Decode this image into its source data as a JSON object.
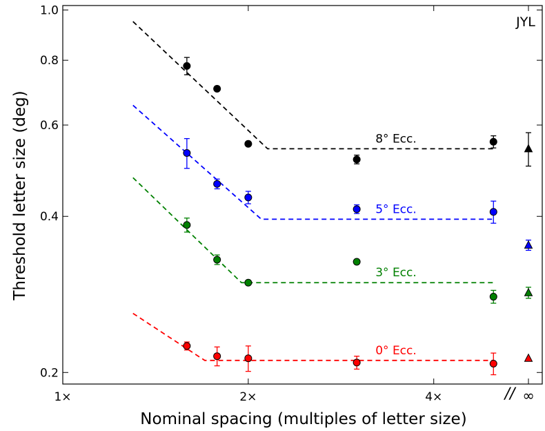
{
  "chart_data": {
    "type": "scatter",
    "subject_label": "JYL",
    "xlabel": "Nominal spacing (multiples of letter size)",
    "ylabel": "Threshold letter size (deg)",
    "xscale": "log",
    "yscale": "log",
    "xlim": [
      1.0,
      6.0
    ],
    "ylim": [
      0.19,
      1.02
    ],
    "x_ticks": [
      {
        "value": 1,
        "label": "1×"
      },
      {
        "value": 2,
        "label": "2×"
      },
      {
        "value": 4,
        "label": "4×"
      },
      {
        "value": "inf",
        "label": "∞"
      }
    ],
    "y_ticks": [
      {
        "value": 0.2,
        "label": "0.2"
      },
      {
        "value": 0.4,
        "label": "0.4"
      },
      {
        "value": 0.6,
        "label": "0.6"
      },
      {
        "value": 0.8,
        "label": "0.8"
      },
      {
        "value": 1.0,
        "label": "1.0"
      }
    ],
    "axis_break_label": "//",
    "grid": false,
    "series": [
      {
        "name": "8° Ecc.",
        "color": "#000000",
        "points": [
          {
            "x": 1.59,
            "y": 0.78,
            "err": 0.03
          },
          {
            "x": 1.78,
            "y": 0.705,
            "err": 0
          },
          {
            "x": 2.0,
            "y": 0.552,
            "err": 0
          },
          {
            "x": 3.0,
            "y": 0.515,
            "err": 0.01
          },
          {
            "x": 5.0,
            "y": 0.557,
            "err": 0.015
          }
        ],
        "inf_point": {
          "y": 0.54,
          "err": 0.04
        },
        "fit": [
          [
            1.3,
            0.95
          ],
          [
            2.15,
            0.54
          ],
          [
            5.0,
            0.54
          ]
        ]
      },
      {
        "name": "5° Ecc.",
        "color": "#0000ff",
        "points": [
          {
            "x": 1.59,
            "y": 0.53,
            "err": 0.035
          },
          {
            "x": 1.78,
            "y": 0.462,
            "err": 0.01
          },
          {
            "x": 2.0,
            "y": 0.435,
            "err": 0.012
          },
          {
            "x": 3.0,
            "y": 0.413,
            "err": 0.008
          },
          {
            "x": 5.0,
            "y": 0.408,
            "err": 0.02
          }
        ],
        "inf_point": {
          "y": 0.352,
          "err": 0.008
        },
        "fit": [
          [
            1.3,
            0.655
          ],
          [
            2.1,
            0.395
          ],
          [
            5.0,
            0.395
          ]
        ]
      },
      {
        "name": "3° Ecc.",
        "color": "#008000",
        "points": [
          {
            "x": 1.59,
            "y": 0.385,
            "err": 0.012
          },
          {
            "x": 1.78,
            "y": 0.33,
            "err": 0.007
          },
          {
            "x": 2.0,
            "y": 0.298,
            "err": 0
          },
          {
            "x": 3.0,
            "y": 0.327,
            "err": 0
          },
          {
            "x": 5.0,
            "y": 0.28,
            "err": 0.008
          }
        ],
        "inf_point": {
          "y": 0.285,
          "err": 0.007
        },
        "fit": [
          [
            1.3,
            0.475
          ],
          [
            1.95,
            0.298
          ],
          [
            5.0,
            0.298
          ]
        ]
      },
      {
        "name": "0° Ecc.",
        "color": "#ff0000",
        "points": [
          {
            "x": 1.59,
            "y": 0.225,
            "err": 0.004
          },
          {
            "x": 1.78,
            "y": 0.215,
            "err": 0.009
          },
          {
            "x": 2.0,
            "y": 0.213,
            "err": 0.012
          },
          {
            "x": 3.0,
            "y": 0.209,
            "err": 0.006
          },
          {
            "x": 5.0,
            "y": 0.208,
            "err": 0.01
          }
        ],
        "inf_point": {
          "y": 0.213,
          "err": 0
        },
        "fit": [
          [
            1.3,
            0.26
          ],
          [
            1.7,
            0.211
          ],
          [
            5.0,
            0.211
          ]
        ]
      }
    ]
  }
}
